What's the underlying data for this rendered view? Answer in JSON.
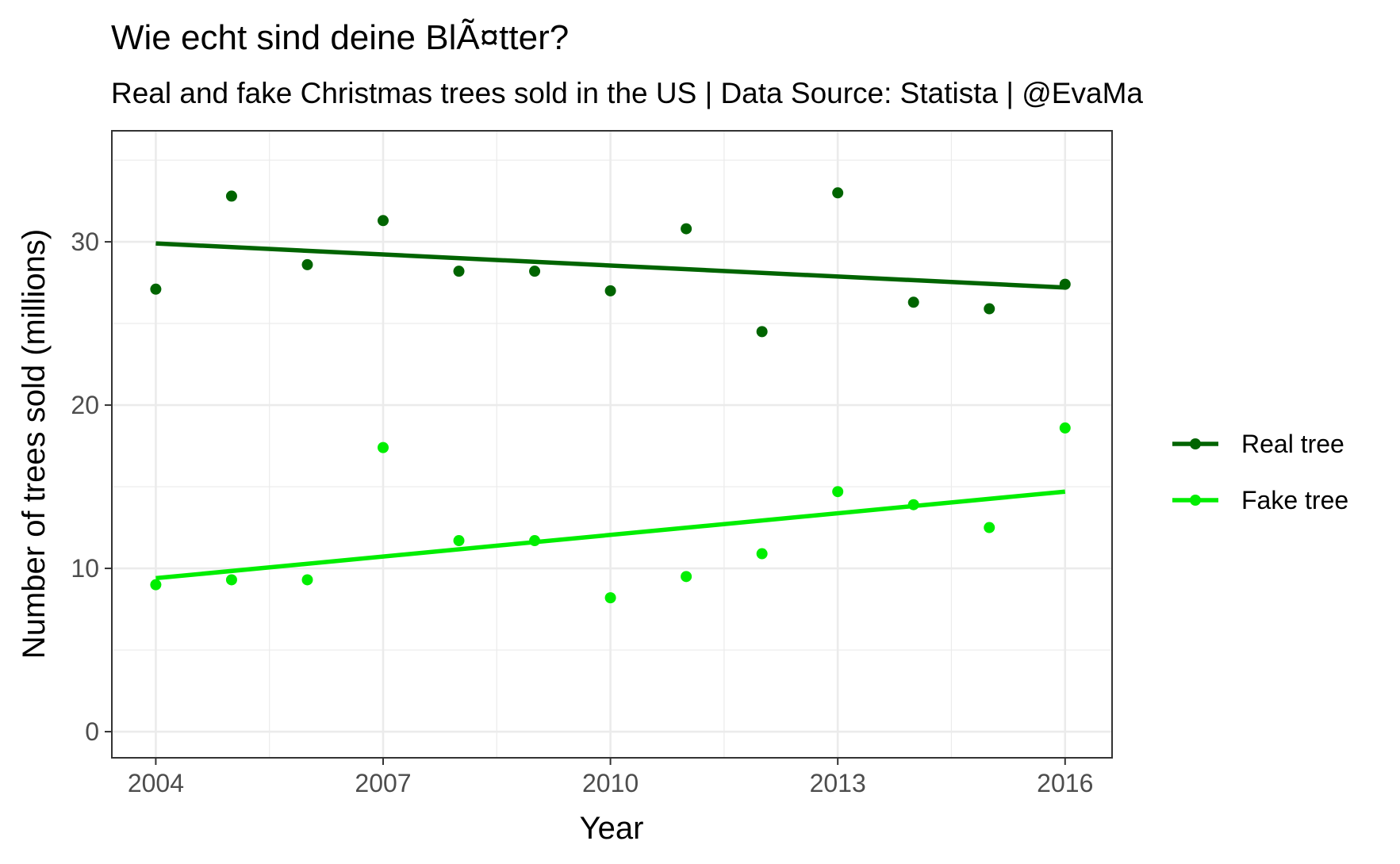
{
  "chart_data": {
    "type": "scatter",
    "title": "Wie echt sind deine BlÃ¤tter?",
    "subtitle": "Real and fake Christmas trees sold in the US | Data Source: Statista | @EvaMa",
    "xlabel": "Year",
    "ylabel": "Number of trees sold (millions)",
    "xlim": [
      2003.42,
      2016.62
    ],
    "ylim": [
      -1.6,
      36.8
    ],
    "x_ticks": [
      2004,
      2007,
      2010,
      2013,
      2016
    ],
    "x_tick_labels": [
      "2004",
      "2007",
      "2010",
      "2013",
      "2016"
    ],
    "y_ticks": [
      0,
      10,
      20,
      30
    ],
    "y_tick_labels": [
      "0",
      "10",
      "20",
      "30"
    ],
    "grid": true,
    "legend_position": "right",
    "x": [
      2004,
      2005,
      2006,
      2007,
      2008,
      2009,
      2010,
      2011,
      2012,
      2013,
      2014,
      2015,
      2016
    ],
    "series": [
      {
        "name": "Real tree",
        "color": "#006400",
        "values": [
          27.1,
          32.8,
          28.6,
          31.3,
          28.2,
          28.2,
          27.0,
          30.8,
          24.5,
          33.0,
          26.3,
          25.9,
          27.4
        ],
        "trend": [
          29.9,
          27.2
        ]
      },
      {
        "name": "Fake tree",
        "color": "#00EE00",
        "values": [
          9.0,
          9.3,
          9.3,
          17.4,
          11.7,
          11.7,
          8.2,
          9.5,
          10.9,
          14.7,
          13.9,
          12.5,
          18.6
        ],
        "trend": [
          9.4,
          14.7
        ]
      }
    ]
  }
}
